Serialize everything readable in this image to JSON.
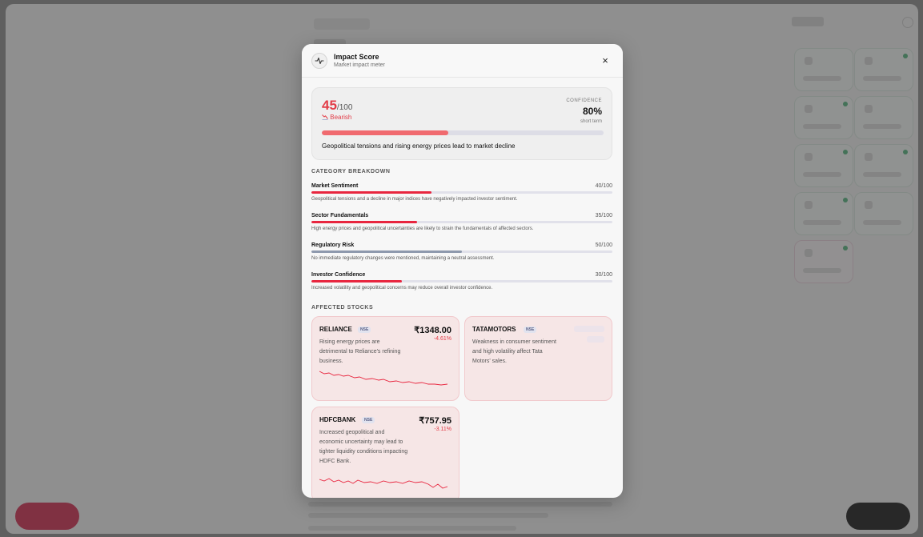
{
  "modal": {
    "title": "Impact Score",
    "subtitle": "Market impact meter",
    "close_label": "×",
    "score": {
      "value": "45",
      "max": "/100",
      "fraction": 0.45,
      "sentiment_icon": "bearish-chart-icon",
      "sentiment": "Bearish"
    },
    "confidence": {
      "label": "CONFIDENCE",
      "value": "80%",
      "term": "short term"
    },
    "summary": "Geopolitical tensions and rising energy prices lead to market decline",
    "category_title": "CATEGORY BREAKDOWN",
    "categories": [
      {
        "name": "Market Sentiment",
        "score": "40/100",
        "fraction": 0.4,
        "color": "#e8263f",
        "desc": "Geopolitical tensions and a decline in major indices have negatively impacted investor sentiment."
      },
      {
        "name": "Sector Fundamentals",
        "score": "35/100",
        "fraction": 0.35,
        "color": "#e8263f",
        "desc": "High energy prices and geopolitical uncertainties are likely to strain the fundamentals of affected sectors."
      },
      {
        "name": "Regulatory Risk",
        "score": "50/100",
        "fraction": 0.5,
        "color": "#8e99ad",
        "desc": "No immediate regulatory changes were mentioned, maintaining a neutral assessment."
      },
      {
        "name": "Investor Confidence",
        "score": "30/100",
        "fraction": 0.3,
        "color": "#e8263f",
        "desc": "Increased volatility and geopolitical concerns may reduce overall investor confidence."
      }
    ],
    "stocks_title": "AFFECTED STOCKS",
    "stocks": [
      {
        "symbol": "RELIANCE",
        "exchange": "NSE",
        "price": "₹1348.00",
        "change": "-4.61%",
        "desc": "Rising energy prices are detrimental to Reliance's refining business."
      },
      {
        "symbol": "TATAMOTORS",
        "exchange": "NSE",
        "price": "",
        "change": "",
        "desc": "Weakness in consumer sentiment and high volatility affect Tata Motors' sales."
      },
      {
        "symbol": "HDFCBANK",
        "exchange": "NSE",
        "price": "₹757.95",
        "change": "-3.11%",
        "desc": "Increased geopolitical and economic uncertainty may lead to tighter liquidity conditions impacting HDFC Bank."
      }
    ]
  },
  "colors": {
    "accent_red": "#e23c47",
    "bearish_fill": "#f06a6f",
    "neutral_fill": "#8e99ad",
    "card_bg": "#f6e6e6"
  }
}
